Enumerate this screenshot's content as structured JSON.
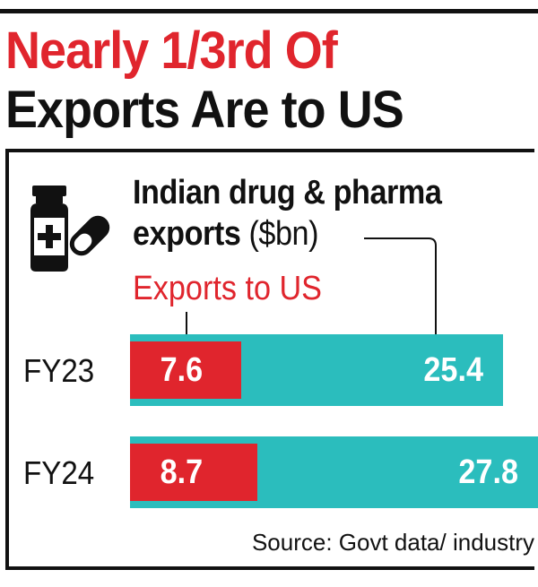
{
  "headline": {
    "line1": "Nearly 1/3rd Of",
    "line2": "Exports Are to US"
  },
  "icon": "medicine-bottle-and-pill-icon",
  "colors": {
    "accent_red": "#e0252d",
    "bar_teal": "#2bbdbd",
    "text_dark": "#111111"
  },
  "source": "Source: Govt data/ industry",
  "chart_data": {
    "type": "bar",
    "orientation": "horizontal",
    "title_line1": "Indian drug & pharma",
    "title_line2_bold": "exports",
    "title_unit": "($bn)",
    "categories": [
      "FY23",
      "FY24"
    ],
    "series": [
      {
        "name": "Exports to US",
        "values": [
          7.6,
          8.7
        ],
        "color": "#e0252d"
      },
      {
        "values": [
          25.4,
          27.8
        ],
        "color": "#2bbdbd"
      }
    ],
    "xlim": [
      0,
      27.8
    ],
    "grid": false
  }
}
